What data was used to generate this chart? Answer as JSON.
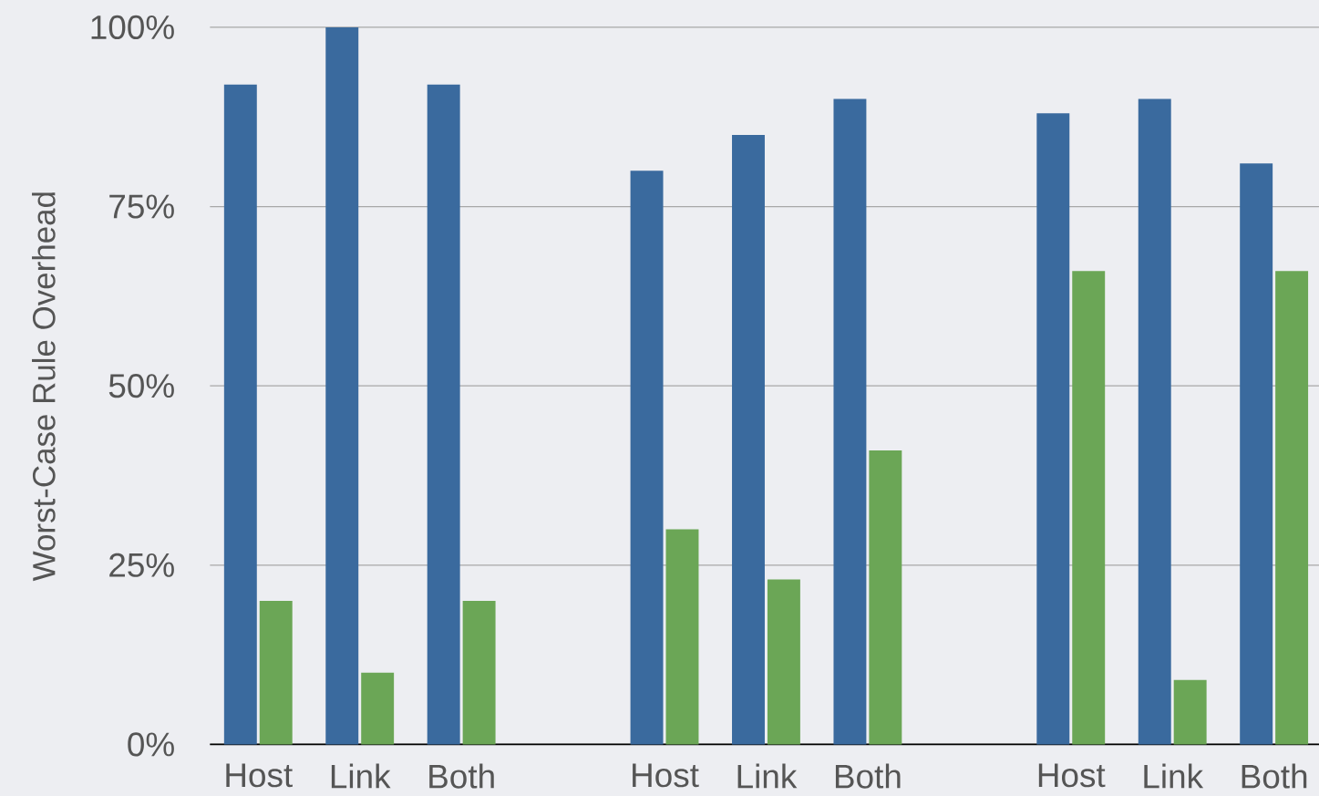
{
  "chart_data": {
    "type": "bar",
    "ylabel": "Worst-Case Rule Overhead",
    "categories": [
      "Host",
      "Link",
      "Both",
      null,
      "Host",
      "Link",
      "Both",
      null,
      "Host",
      "Link",
      "Both"
    ],
    "series": [
      {
        "color": "#3a6a9e",
        "values": [
          92,
          100,
          92,
          null,
          80,
          85,
          90,
          null,
          88,
          90,
          81
        ]
      },
      {
        "color": "#6ba656",
        "values": [
          20,
          10,
          20,
          null,
          30,
          23,
          41,
          null,
          66,
          9,
          66
        ]
      }
    ],
    "ylim": [
      0,
      100
    ],
    "yticks": [
      {
        "value": 0,
        "label": "0%"
      },
      {
        "value": 25,
        "label": "25%"
      },
      {
        "value": 50,
        "label": "50%"
      },
      {
        "value": 75,
        "label": "75%"
      },
      {
        "value": 100,
        "label": "100%"
      }
    ],
    "grid": "y"
  }
}
